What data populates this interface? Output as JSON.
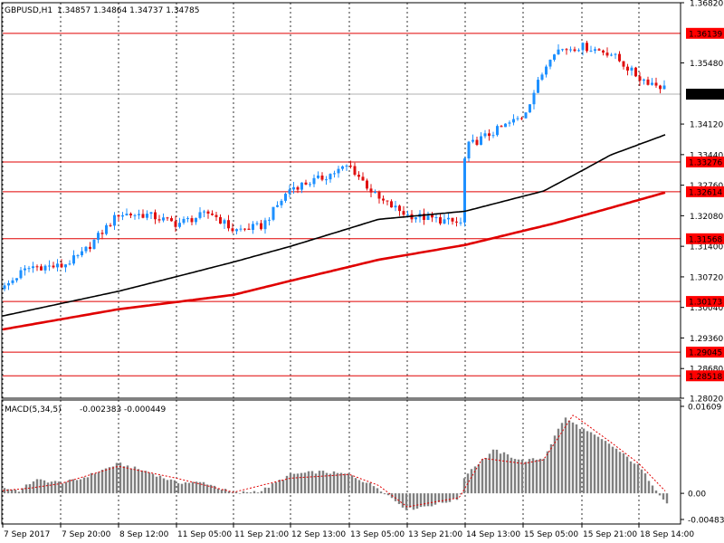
{
  "header": {
    "symbol": "GBPUSD,H1",
    "ohlc": "1.34857 1.34864 1.34737 1.34785"
  },
  "chart_data": {
    "type": "candlestick",
    "symbol": "GBPUSD",
    "timeframe": "H1",
    "grid": true,
    "price_axis": {
      "ylim": [
        1.2802,
        1.3682
      ],
      "ticks": [
        "1.36820",
        "1.35480",
        "1.34120",
        "1.33440",
        "1.32760",
        "1.32080",
        "1.31400",
        "1.30720",
        "1.30040",
        "1.29360",
        "1.28680",
        "1.28020"
      ],
      "current_price": "1.34785"
    },
    "levels": [
      "1.36139",
      "1.33276",
      "1.32614",
      "1.31568",
      "1.30173",
      "1.29045",
      "1.28518"
    ],
    "time_labels": [
      "7 Sep 2017",
      "7 Sep 20:00",
      "8 Sep 12:00",
      "11 Sep 05:00",
      "11 Sep 21:00",
      "12 Sep 13:00",
      "13 Sep 05:00",
      "13 Sep 21:00",
      "14 Sep 13:00",
      "15 Sep 05:00",
      "15 Sep 21:00",
      "18 Sep 14:00"
    ],
    "close_series": [
      {
        "x": 0,
        "y": 1.3045
      },
      {
        "x": 0.3,
        "y": 1.308
      },
      {
        "x": 0.5,
        "y": 1.3095
      },
      {
        "x": 1,
        "y": 1.3095
      },
      {
        "x": 1.35,
        "y": 1.312
      },
      {
        "x": 2,
        "y": 1.3212
      },
      {
        "x": 2.5,
        "y": 1.321
      },
      {
        "x": 3,
        "y": 1.319
      },
      {
        "x": 3.6,
        "y": 1.3215
      },
      {
        "x": 4,
        "y": 1.3175
      },
      {
        "x": 4.5,
        "y": 1.3185
      },
      {
        "x": 5,
        "y": 1.327
      },
      {
        "x": 5.5,
        "y": 1.329
      },
      {
        "x": 6,
        "y": 1.332
      },
      {
        "x": 6.5,
        "y": 1.3245
      },
      {
        "x": 7,
        "y": 1.321
      },
      {
        "x": 7.5,
        "y": 1.32
      },
      {
        "x": 7.95,
        "y": 1.319
      },
      {
        "x": 8,
        "y": 1.336
      },
      {
        "x": 8.5,
        "y": 1.3395
      },
      {
        "x": 9,
        "y": 1.343
      },
      {
        "x": 9.5,
        "y": 1.3575
      },
      {
        "x": 10,
        "y": 1.3585
      },
      {
        "x": 10.5,
        "y": 1.357
      },
      {
        "x": 11,
        "y": 1.3515
      },
      {
        "x": 11.5,
        "y": 1.349
      }
    ],
    "ma_black": [
      {
        "x": 0,
        "y": 1.2985
      },
      {
        "x": 2,
        "y": 1.304
      },
      {
        "x": 4,
        "y": 1.3105
      },
      {
        "x": 5,
        "y": 1.314
      },
      {
        "x": 6.5,
        "y": 1.32
      },
      {
        "x": 8,
        "y": 1.3218
      },
      {
        "x": 9.35,
        "y": 1.3263
      },
      {
        "x": 10.5,
        "y": 1.3343
      },
      {
        "x": 11.5,
        "y": 1.339
      }
    ],
    "ma_red": [
      {
        "x": 0,
        "y": 1.2955
      },
      {
        "x": 2,
        "y": 1.3
      },
      {
        "x": 4,
        "y": 1.3032
      },
      {
        "x": 6.5,
        "y": 1.311
      },
      {
        "x": 8,
        "y": 1.3143
      },
      {
        "x": 9.5,
        "y": 1.319
      },
      {
        "x": 11.5,
        "y": 1.3261
      }
    ],
    "macd": {
      "label": "MACD(5,34,5)",
      "values": "-0.002383 -0.000449",
      "ylim": [
        -0.004835,
        0.01609
      ],
      "ticks": [
        "0.01609",
        "0.00",
        "-0.004835"
      ],
      "histogram": [
        {
          "x": 0,
          "y": 0.001
        },
        {
          "x": 0.3,
          "y": 0.0005
        },
        {
          "x": 0.55,
          "y": 0.0025
        },
        {
          "x": 1,
          "y": 0.002
        },
        {
          "x": 1.3,
          "y": 0.0025
        },
        {
          "x": 2,
          "y": 0.0055
        },
        {
          "x": 2.5,
          "y": 0.004
        },
        {
          "x": 3,
          "y": 0.002
        },
        {
          "x": 3.5,
          "y": 0.002
        },
        {
          "x": 4,
          "y": 0.0
        },
        {
          "x": 4.5,
          "y": 0.0005
        },
        {
          "x": 5,
          "y": 0.0035
        },
        {
          "x": 5.5,
          "y": 0.004
        },
        {
          "x": 6,
          "y": 0.0035
        },
        {
          "x": 6.5,
          "y": 0.001
        },
        {
          "x": 7,
          "y": -0.003
        },
        {
          "x": 7.5,
          "y": -0.002
        },
        {
          "x": 7.9,
          "y": -0.001
        },
        {
          "x": 8,
          "y": 0.0035
        },
        {
          "x": 8.5,
          "y": 0.008
        },
        {
          "x": 9,
          "y": 0.006
        },
        {
          "x": 9.35,
          "y": 0.0065
        },
        {
          "x": 9.7,
          "y": 0.014
        },
        {
          "x": 10,
          "y": 0.012
        },
        {
          "x": 10.5,
          "y": 0.009
        },
        {
          "x": 11,
          "y": 0.005
        },
        {
          "x": 11.5,
          "y": -0.002
        }
      ],
      "signal": [
        {
          "x": 0,
          "y": 0.0005
        },
        {
          "x": 0.5,
          "y": 0.001
        },
        {
          "x": 1,
          "y": 0.0018
        },
        {
          "x": 2,
          "y": 0.005
        },
        {
          "x": 3,
          "y": 0.0028
        },
        {
          "x": 4,
          "y": 0.0002
        },
        {
          "x": 5,
          "y": 0.0028
        },
        {
          "x": 6,
          "y": 0.0035
        },
        {
          "x": 6.5,
          "y": 0.0015
        },
        {
          "x": 7,
          "y": -0.0025
        },
        {
          "x": 7.9,
          "y": -0.0008
        },
        {
          "x": 8.3,
          "y": 0.0065
        },
        {
          "x": 9,
          "y": 0.0055
        },
        {
          "x": 9.35,
          "y": 0.0062
        },
        {
          "x": 9.85,
          "y": 0.0145
        },
        {
          "x": 10.5,
          "y": 0.0095
        },
        {
          "x": 11,
          "y": 0.0055
        },
        {
          "x": 11.5,
          "y": 0.0
        }
      ]
    }
  },
  "colors": {
    "bull": "#1e90ff",
    "bear": "#e01010",
    "level_line": "#e00000",
    "level_label_bg": "#ff0000",
    "ma_black": "#000000",
    "ma_red": "#e00000",
    "histogram": "#808080",
    "signal": "#e00000",
    "grid": "#000000",
    "current_line": "#b0b0b0"
  }
}
